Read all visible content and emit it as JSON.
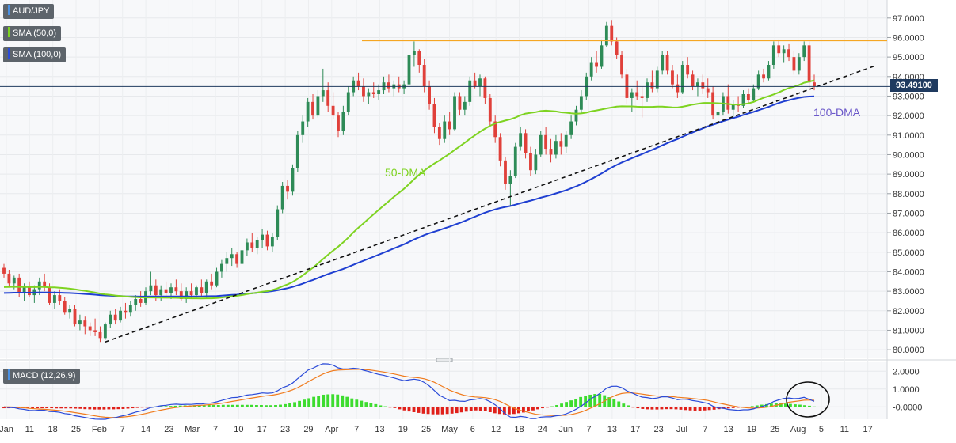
{
  "chart_data": {
    "type": "candlestick",
    "symbol": "AUD/JPY",
    "indicators": [
      {
        "label": "SMA (50,0)",
        "color": "#7ed321"
      },
      {
        "label": "SMA (100,0)",
        "color": "#1f3fd1"
      }
    ],
    "price_axis": {
      "ticks": [
        "97.0000",
        "96.0000",
        "95.0000",
        "94.0000",
        "93.0000",
        "92.0000",
        "91.0000",
        "90.0000",
        "89.0000",
        "88.0000",
        "87.0000",
        "86.0000",
        "85.0000",
        "84.0000",
        "83.0000",
        "82.0000",
        "81.0000",
        "80.0000"
      ],
      "range": [
        79.6,
        97.6
      ]
    },
    "x_axis_ticks": [
      "Jan",
      "11",
      "18",
      "25",
      "Feb",
      "7",
      "14",
      "23",
      "Mar",
      "7",
      "10",
      "17",
      "23",
      "29",
      "Apr",
      "7",
      "13",
      "19",
      "25",
      "May",
      "6",
      "12",
      "18",
      "24",
      "Jun",
      "7",
      "13",
      "17",
      "23",
      "Jul",
      "7",
      "13",
      "19",
      "25",
      "Aug",
      "5",
      "11",
      "17"
    ],
    "current_price": "93.49100",
    "resistance_level": 95.85,
    "annotations": {
      "sma50": "50-DMA",
      "sma100": "100-DMA"
    },
    "ohlc": [
      [
        84.2,
        84.4,
        83.7,
        83.9
      ],
      [
        83.9,
        84.1,
        83.2,
        83.4
      ],
      [
        83.4,
        83.8,
        83.1,
        83.7
      ],
      [
        83.7,
        83.9,
        82.7,
        82.9
      ],
      [
        82.9,
        83.4,
        82.5,
        83.2
      ],
      [
        83.2,
        83.5,
        82.7,
        82.8
      ],
      [
        82.8,
        83.3,
        82.4,
        83.1
      ],
      [
        83.1,
        83.7,
        82.8,
        83.5
      ],
      [
        83.5,
        83.9,
        83.0,
        83.2
      ],
      [
        83.2,
        83.4,
        82.3,
        82.4
      ],
      [
        82.4,
        83.0,
        82.1,
        82.8
      ],
      [
        82.8,
        83.1,
        82.3,
        82.5
      ],
      [
        82.5,
        82.7,
        81.8,
        81.9
      ],
      [
        81.9,
        82.3,
        81.6,
        82.1
      ],
      [
        82.1,
        82.3,
        81.2,
        81.3
      ],
      [
        81.3,
        81.8,
        81.0,
        81.5
      ],
      [
        81.5,
        81.7,
        80.8,
        81.2
      ],
      [
        81.2,
        81.4,
        80.7,
        81.0
      ],
      [
        81.0,
        81.6,
        80.7,
        80.9
      ],
      [
        80.9,
        81.2,
        80.4,
        80.6
      ],
      [
        80.6,
        81.4,
        80.5,
        81.3
      ],
      [
        81.3,
        82.0,
        81.1,
        81.8
      ],
      [
        81.8,
        82.1,
        81.3,
        81.5
      ],
      [
        81.5,
        82.2,
        81.4,
        82.0
      ],
      [
        82.0,
        82.4,
        81.6,
        81.9
      ],
      [
        81.9,
        82.5,
        81.7,
        82.3
      ],
      [
        82.3,
        82.8,
        82.0,
        82.6
      ],
      [
        82.6,
        83.0,
        82.2,
        82.4
      ],
      [
        82.4,
        83.2,
        82.3,
        83.0
      ],
      [
        83.0,
        84.0,
        82.8,
        83.3
      ],
      [
        83.3,
        83.6,
        82.5,
        82.8
      ],
      [
        82.8,
        83.3,
        82.5,
        83.1
      ],
      [
        83.1,
        83.5,
        82.7,
        82.9
      ],
      [
        82.9,
        83.4,
        82.6,
        83.2
      ],
      [
        83.2,
        83.6,
        82.8,
        83.0
      ],
      [
        83.0,
        83.4,
        82.5,
        82.6
      ],
      [
        82.6,
        83.2,
        82.4,
        83.0
      ],
      [
        83.0,
        83.4,
        82.6,
        82.8
      ],
      [
        82.8,
        83.3,
        82.6,
        83.2
      ],
      [
        83.2,
        83.6,
        82.7,
        82.9
      ],
      [
        82.9,
        83.6,
        82.6,
        83.5
      ],
      [
        83.5,
        83.9,
        83.1,
        83.3
      ],
      [
        83.3,
        84.2,
        83.2,
        84.0
      ],
      [
        84.0,
        84.6,
        83.7,
        84.4
      ],
      [
        84.4,
        85.0,
        84.0,
        84.7
      ],
      [
        84.7,
        85.2,
        84.3,
        84.9
      ],
      [
        84.9,
        85.0,
        84.2,
        84.4
      ],
      [
        84.4,
        85.3,
        84.2,
        85.1
      ],
      [
        85.1,
        85.7,
        84.8,
        85.5
      ],
      [
        85.5,
        86.0,
        85.0,
        85.2
      ],
      [
        85.2,
        85.8,
        84.9,
        85.6
      ],
      [
        85.6,
        86.2,
        85.2,
        85.9
      ],
      [
        85.9,
        86.1,
        85.1,
        85.3
      ],
      [
        85.3,
        86.0,
        85.0,
        85.8
      ],
      [
        85.8,
        87.4,
        85.6,
        87.2
      ],
      [
        87.2,
        88.6,
        87.0,
        88.4
      ],
      [
        88.4,
        88.7,
        87.7,
        88.1
      ],
      [
        88.1,
        89.5,
        87.9,
        89.3
      ],
      [
        89.3,
        91.2,
        89.1,
        91.0
      ],
      [
        91.0,
        92.0,
        90.6,
        91.7
      ],
      [
        91.7,
        92.9,
        91.4,
        92.7
      ],
      [
        92.7,
        93.1,
        91.8,
        92.0
      ],
      [
        92.0,
        93.3,
        91.9,
        93.0
      ],
      [
        93.0,
        94.4,
        92.7,
        93.3
      ],
      [
        93.3,
        93.7,
        92.2,
        92.5
      ],
      [
        92.5,
        93.2,
        91.8,
        92.0
      ],
      [
        92.0,
        92.2,
        90.9,
        91.2
      ],
      [
        91.2,
        92.5,
        91.0,
        92.2
      ],
      [
        92.2,
        93.5,
        92.0,
        93.2
      ],
      [
        93.2,
        94.0,
        93.0,
        93.8
      ],
      [
        93.8,
        94.2,
        93.3,
        93.5
      ],
      [
        93.5,
        93.9,
        92.7,
        93.0
      ],
      [
        93.0,
        93.4,
        92.6,
        93.2
      ],
      [
        93.2,
        93.7,
        92.9,
        93.1
      ],
      [
        93.1,
        93.6,
        92.8,
        93.3
      ],
      [
        93.3,
        94.0,
        93.1,
        93.7
      ],
      [
        93.7,
        94.1,
        93.2,
        93.4
      ],
      [
        93.4,
        93.8,
        93.0,
        93.6
      ],
      [
        93.6,
        94.0,
        93.2,
        93.4
      ],
      [
        93.4,
        93.8,
        93.1,
        93.6
      ],
      [
        93.6,
        95.3,
        93.4,
        95.1
      ],
      [
        95.1,
        95.8,
        94.5,
        95.3
      ],
      [
        95.3,
        95.4,
        94.2,
        94.6
      ],
      [
        94.6,
        94.9,
        93.2,
        93.5
      ],
      [
        93.5,
        93.8,
        92.3,
        92.6
      ],
      [
        92.6,
        92.9,
        91.1,
        91.4
      ],
      [
        91.4,
        91.6,
        90.5,
        90.8
      ],
      [
        90.8,
        92.0,
        90.6,
        91.7
      ],
      [
        91.7,
        92.2,
        91.0,
        91.3
      ],
      [
        91.3,
        93.2,
        91.2,
        93.0
      ],
      [
        93.0,
        93.2,
        92.0,
        92.3
      ],
      [
        92.3,
        93.0,
        92.0,
        92.7
      ],
      [
        92.7,
        94.0,
        92.5,
        93.8
      ],
      [
        93.8,
        94.2,
        93.4,
        93.5
      ],
      [
        93.5,
        94.1,
        93.0,
        93.9
      ],
      [
        93.9,
        94.0,
        92.6,
        92.9
      ],
      [
        92.9,
        93.1,
        91.4,
        91.7
      ],
      [
        91.7,
        92.0,
        90.6,
        90.9
      ],
      [
        90.9,
        91.1,
        89.4,
        89.7
      ],
      [
        89.7,
        89.9,
        88.2,
        88.5
      ],
      [
        88.5,
        89.2,
        87.4,
        88.9
      ],
      [
        88.9,
        90.6,
        88.8,
        90.4
      ],
      [
        90.4,
        91.4,
        90.2,
        91.1
      ],
      [
        91.1,
        91.3,
        89.8,
        90.1
      ],
      [
        90.1,
        90.4,
        88.9,
        89.2
      ],
      [
        89.2,
        90.3,
        89.0,
        90.0
      ],
      [
        90.0,
        91.2,
        89.9,
        91.0
      ],
      [
        91.0,
        91.4,
        90.0,
        90.3
      ],
      [
        90.3,
        90.8,
        89.6,
        90.0
      ],
      [
        90.0,
        91.0,
        89.8,
        90.7
      ],
      [
        90.7,
        91.1,
        90.0,
        90.4
      ],
      [
        90.4,
        91.2,
        90.1,
        91.0
      ],
      [
        91.0,
        92.0,
        90.8,
        91.7
      ],
      [
        91.7,
        92.5,
        91.5,
        92.3
      ],
      [
        92.3,
        93.3,
        92.1,
        93.0
      ],
      [
        93.0,
        94.2,
        92.8,
        94.0
      ],
      [
        94.0,
        95.0,
        93.8,
        94.7
      ],
      [
        94.7,
        95.3,
        94.2,
        94.5
      ],
      [
        94.5,
        95.9,
        94.4,
        95.6
      ],
      [
        95.6,
        96.8,
        95.5,
        96.6
      ],
      [
        96.6,
        96.9,
        95.6,
        95.8
      ],
      [
        95.8,
        96.0,
        94.9,
        95.1
      ],
      [
        95.1,
        95.3,
        93.9,
        94.1
      ],
      [
        94.1,
        94.4,
        92.6,
        92.9
      ],
      [
        92.9,
        93.4,
        92.2,
        93.2
      ],
      [
        93.2,
        93.8,
        92.8,
        93.0
      ],
      [
        93.0,
        93.5,
        91.9,
        92.9
      ],
      [
        92.9,
        93.9,
        92.7,
        93.7
      ],
      [
        93.7,
        94.3,
        93.2,
        93.4
      ],
      [
        93.4,
        94.5,
        93.2,
        94.3
      ],
      [
        94.3,
        95.3,
        94.1,
        95.1
      ],
      [
        95.1,
        95.3,
        94.1,
        94.3
      ],
      [
        94.3,
        94.6,
        93.4,
        93.6
      ],
      [
        93.6,
        94.1,
        92.9,
        93.2
      ],
      [
        93.2,
        94.8,
        93.1,
        94.6
      ],
      [
        94.6,
        95.0,
        93.9,
        94.1
      ],
      [
        94.1,
        94.3,
        93.3,
        93.5
      ],
      [
        93.5,
        93.9,
        93.0,
        93.7
      ],
      [
        93.7,
        94.1,
        93.1,
        93.4
      ],
      [
        93.4,
        93.9,
        92.9,
        93.2
      ],
      [
        93.2,
        93.5,
        91.8,
        92.0
      ],
      [
        92.0,
        92.4,
        91.4,
        92.2
      ],
      [
        92.2,
        93.2,
        92.0,
        93.0
      ],
      [
        93.0,
        93.6,
        92.1,
        92.3
      ],
      [
        92.3,
        92.8,
        91.9,
        92.6
      ],
      [
        92.6,
        93.0,
        92.2,
        92.5
      ],
      [
        92.5,
        93.3,
        92.4,
        93.1
      ],
      [
        93.1,
        93.4,
        92.6,
        92.8
      ],
      [
        92.8,
        93.6,
        92.7,
        93.4
      ],
      [
        93.4,
        94.3,
        93.3,
        94.1
      ],
      [
        94.1,
        94.4,
        93.7,
        93.9
      ],
      [
        93.9,
        94.8,
        93.8,
        94.6
      ],
      [
        94.6,
        95.8,
        94.4,
        95.6
      ],
      [
        95.6,
        95.9,
        95.0,
        95.2
      ],
      [
        95.2,
        95.6,
        94.7,
        95.4
      ],
      [
        95.4,
        95.7,
        94.8,
        95.0
      ],
      [
        95.0,
        95.3,
        94.1,
        94.3
      ],
      [
        94.3,
        95.2,
        94.1,
        95.0
      ],
      [
        95.0,
        95.8,
        94.8,
        95.6
      ],
      [
        95.6,
        95.8,
        93.4,
        93.7
      ],
      [
        93.7,
        94.1,
        93.3,
        93.49
      ]
    ],
    "macd_panel": {
      "label": "MACD (12,26,9)",
      "ticks": [
        "2.0000",
        "1.0000",
        "-0.0000"
      ],
      "range": [
        -0.7,
        2.5
      ],
      "histogram": [
        -0.08,
        -0.08,
        -0.07,
        -0.07,
        -0.07,
        -0.08,
        -0.08,
        -0.08,
        -0.08,
        -0.08,
        -0.08,
        -0.09,
        -0.09,
        -0.09,
        -0.09,
        -0.1,
        -0.11,
        -0.13,
        -0.14,
        -0.15,
        -0.15,
        -0.15,
        -0.14,
        -0.14,
        -0.13,
        -0.12,
        -0.1,
        -0.08,
        -0.06,
        -0.04,
        -0.02,
        0.0,
        0.02,
        0.03,
        0.04,
        0.05,
        0.06,
        0.07,
        0.08,
        0.08,
        0.09,
        0.09,
        0.09,
        0.1,
        0.1,
        0.1,
        0.11,
        0.11,
        0.11,
        0.11,
        0.11,
        0.11,
        0.11,
        0.1,
        0.1,
        0.09,
        0.09,
        0.1,
        0.12,
        0.15,
        0.2,
        0.26,
        0.33,
        0.4,
        0.48,
        0.56,
        0.62,
        0.68,
        0.7,
        0.71,
        0.69,
        0.64,
        0.56,
        0.47,
        0.4,
        0.34,
        0.27,
        0.21,
        0.15,
        0.08,
        0.03,
        -0.02,
        -0.07,
        -0.14,
        -0.2,
        -0.26,
        -0.3,
        -0.34,
        -0.38,
        -0.4,
        -0.42,
        -0.42,
        -0.42,
        -0.4,
        -0.38,
        -0.35,
        -0.31,
        -0.27,
        -0.22,
        -0.2,
        -0.21,
        -0.25,
        -0.3,
        -0.36,
        -0.4,
        -0.42,
        -0.42,
        -0.4,
        -0.36,
        -0.32,
        -0.26,
        -0.2,
        -0.14,
        -0.08,
        -0.02,
        0.03,
        0.1,
        0.18,
        0.27,
        0.36,
        0.45,
        0.55,
        0.62,
        0.68,
        0.72,
        0.72,
        0.65,
        0.54,
        0.42,
        0.3,
        0.18,
        0.08,
        -0.01,
        -0.08,
        -0.12,
        -0.14,
        -0.15,
        -0.15,
        -0.14,
        -0.13,
        -0.13,
        -0.14,
        -0.16,
        -0.18,
        -0.2,
        -0.21,
        -0.21,
        -0.2,
        -0.18,
        -0.16,
        -0.13,
        -0.11,
        -0.09,
        -0.07,
        -0.05,
        -0.03,
        0.0,
        0.04,
        0.08,
        0.12,
        0.15,
        0.18,
        0.19,
        0.19,
        0.18,
        0.16,
        0.14,
        0.12,
        0.09,
        0.06,
        0.02
      ]
    }
  }
}
